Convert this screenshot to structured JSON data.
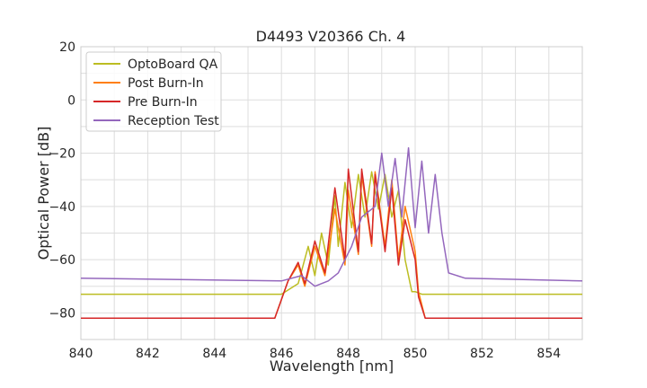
{
  "chart_data": {
    "type": "line",
    "title": "D4493 V20366 Ch. 4",
    "xlabel": "Wavelength [nm]",
    "ylabel": "Optical Power [dB]",
    "xlim": [
      840,
      855
    ],
    "ylim": [
      -90,
      20
    ],
    "xticks": [
      840,
      842,
      844,
      846,
      848,
      850,
      852,
      854
    ],
    "yticks": [
      20,
      0,
      -20,
      -40,
      -60,
      -80
    ],
    "ytick_labels": [
      "20",
      "0",
      "−20",
      "−40",
      "−60",
      "−80"
    ],
    "grid": true,
    "legend_position": "upper-left",
    "series": [
      {
        "name": "OptoBoard QA",
        "color": "#bcbd22",
        "x": [
          840,
          846,
          846.5,
          846.8,
          847.0,
          847.2,
          847.4,
          847.6,
          847.7,
          847.9,
          848.1,
          848.3,
          848.5,
          848.7,
          848.9,
          849.1,
          849.3,
          849.5,
          849.7,
          849.9,
          850.0,
          850.2,
          855
        ],
        "y": [
          -73,
          -73,
          -69,
          -55,
          -66,
          -50,
          -62,
          -36,
          -55,
          -31,
          -48,
          -28,
          -44,
          -27,
          -41,
          -28,
          -44,
          -34,
          -60,
          -72,
          -72,
          -73,
          -73
        ]
      },
      {
        "name": "Post Burn-In",
        "color": "#ff7f0e",
        "x": [
          840,
          845.8,
          846.2,
          846.5,
          846.7,
          847.0,
          847.3,
          847.6,
          847.9,
          848.0,
          848.3,
          848.4,
          848.7,
          848.8,
          849.1,
          849.3,
          849.5,
          849.7,
          850.0,
          850.1,
          850.3,
          855
        ],
        "y": [
          -82,
          -82,
          -68,
          -62,
          -70,
          -55,
          -66,
          -41,
          -62,
          -34,
          -58,
          -28,
          -55,
          -27,
          -55,
          -30,
          -60,
          -40,
          -57,
          -72,
          -82,
          -82
        ]
      },
      {
        "name": "Pre Burn-In",
        "color": "#d62728",
        "x": [
          840,
          845.8,
          846.2,
          846.5,
          846.7,
          847.0,
          847.3,
          847.6,
          847.9,
          848.0,
          848.3,
          848.4,
          848.7,
          848.8,
          849.1,
          849.3,
          849.5,
          849.7,
          850.0,
          850.1,
          850.3,
          855
        ],
        "y": [
          -82,
          -82,
          -68,
          -61,
          -69,
          -53,
          -65,
          -33,
          -60,
          -26,
          -57,
          -26,
          -54,
          -28,
          -57,
          -33,
          -62,
          -45,
          -60,
          -74,
          -82,
          -82
        ]
      },
      {
        "name": "Reception Test",
        "color": "#9467bd",
        "x": [
          840,
          846.0,
          846.6,
          847.0,
          847.4,
          847.7,
          848.1,
          848.4,
          848.8,
          849.0,
          849.2,
          849.4,
          849.6,
          849.8,
          850.0,
          850.2,
          850.4,
          850.6,
          850.8,
          851.0,
          851.5,
          855
        ],
        "y": [
          -67,
          -68,
          -66,
          -70,
          -68,
          -65,
          -55,
          -44,
          -40,
          -20,
          -40,
          -22,
          -44,
          -18,
          -48,
          -23,
          -50,
          -28,
          -50,
          -65,
          -67,
          -68
        ]
      }
    ]
  }
}
